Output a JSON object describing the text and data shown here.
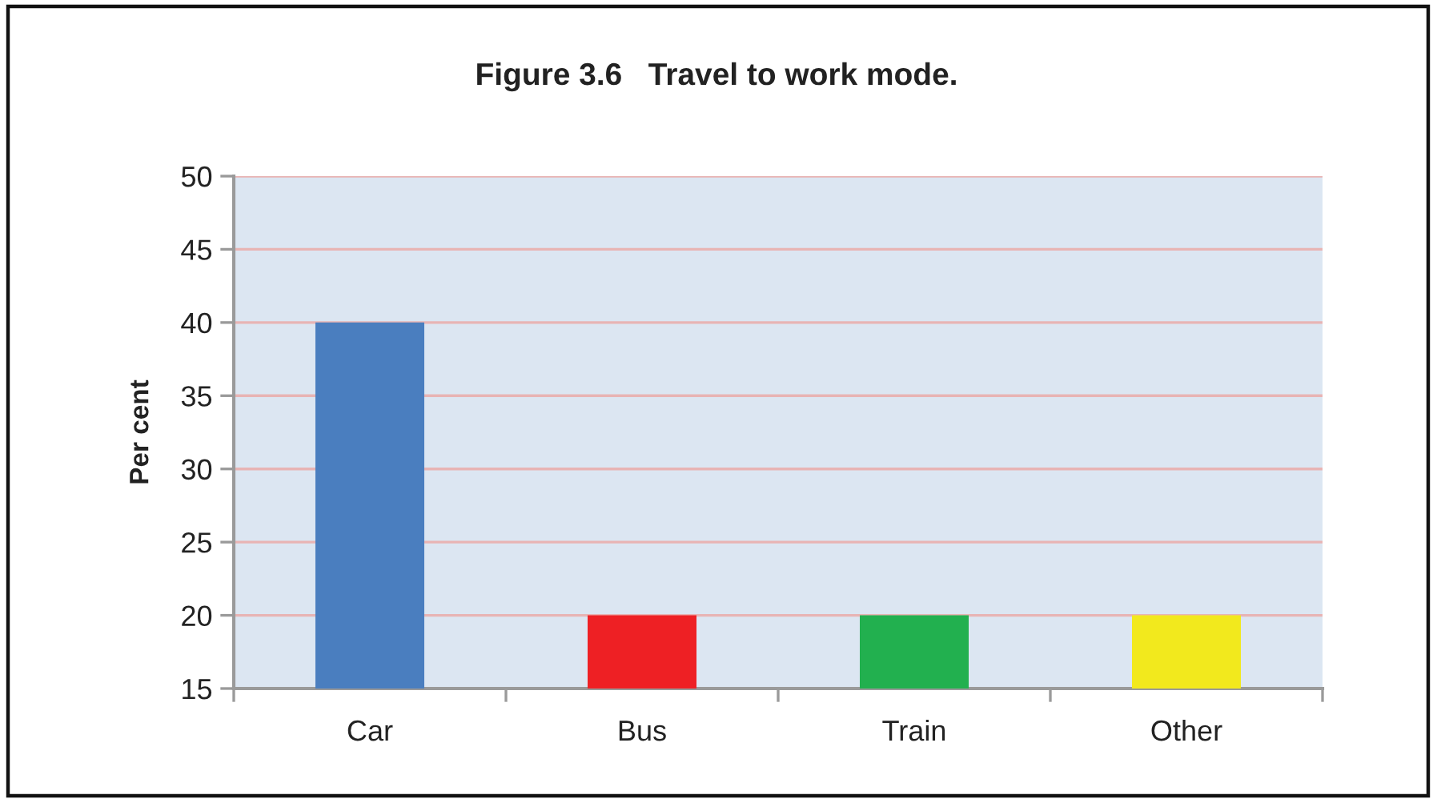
{
  "chart_data": {
    "type": "bar",
    "title": "Figure 3.6   Travel to work mode.",
    "ylabel": "Per cent",
    "categories": [
      "Car",
      "Bus",
      "Train",
      "Other"
    ],
    "values": [
      40,
      20,
      20,
      20
    ],
    "colors": [
      "#4a7ebf",
      "#ee2024",
      "#22b04f",
      "#f2e91d"
    ],
    "ylim": [
      15,
      50
    ],
    "yticks": [
      15,
      20,
      25,
      30,
      35,
      40,
      45,
      50
    ],
    "grid": "y"
  }
}
